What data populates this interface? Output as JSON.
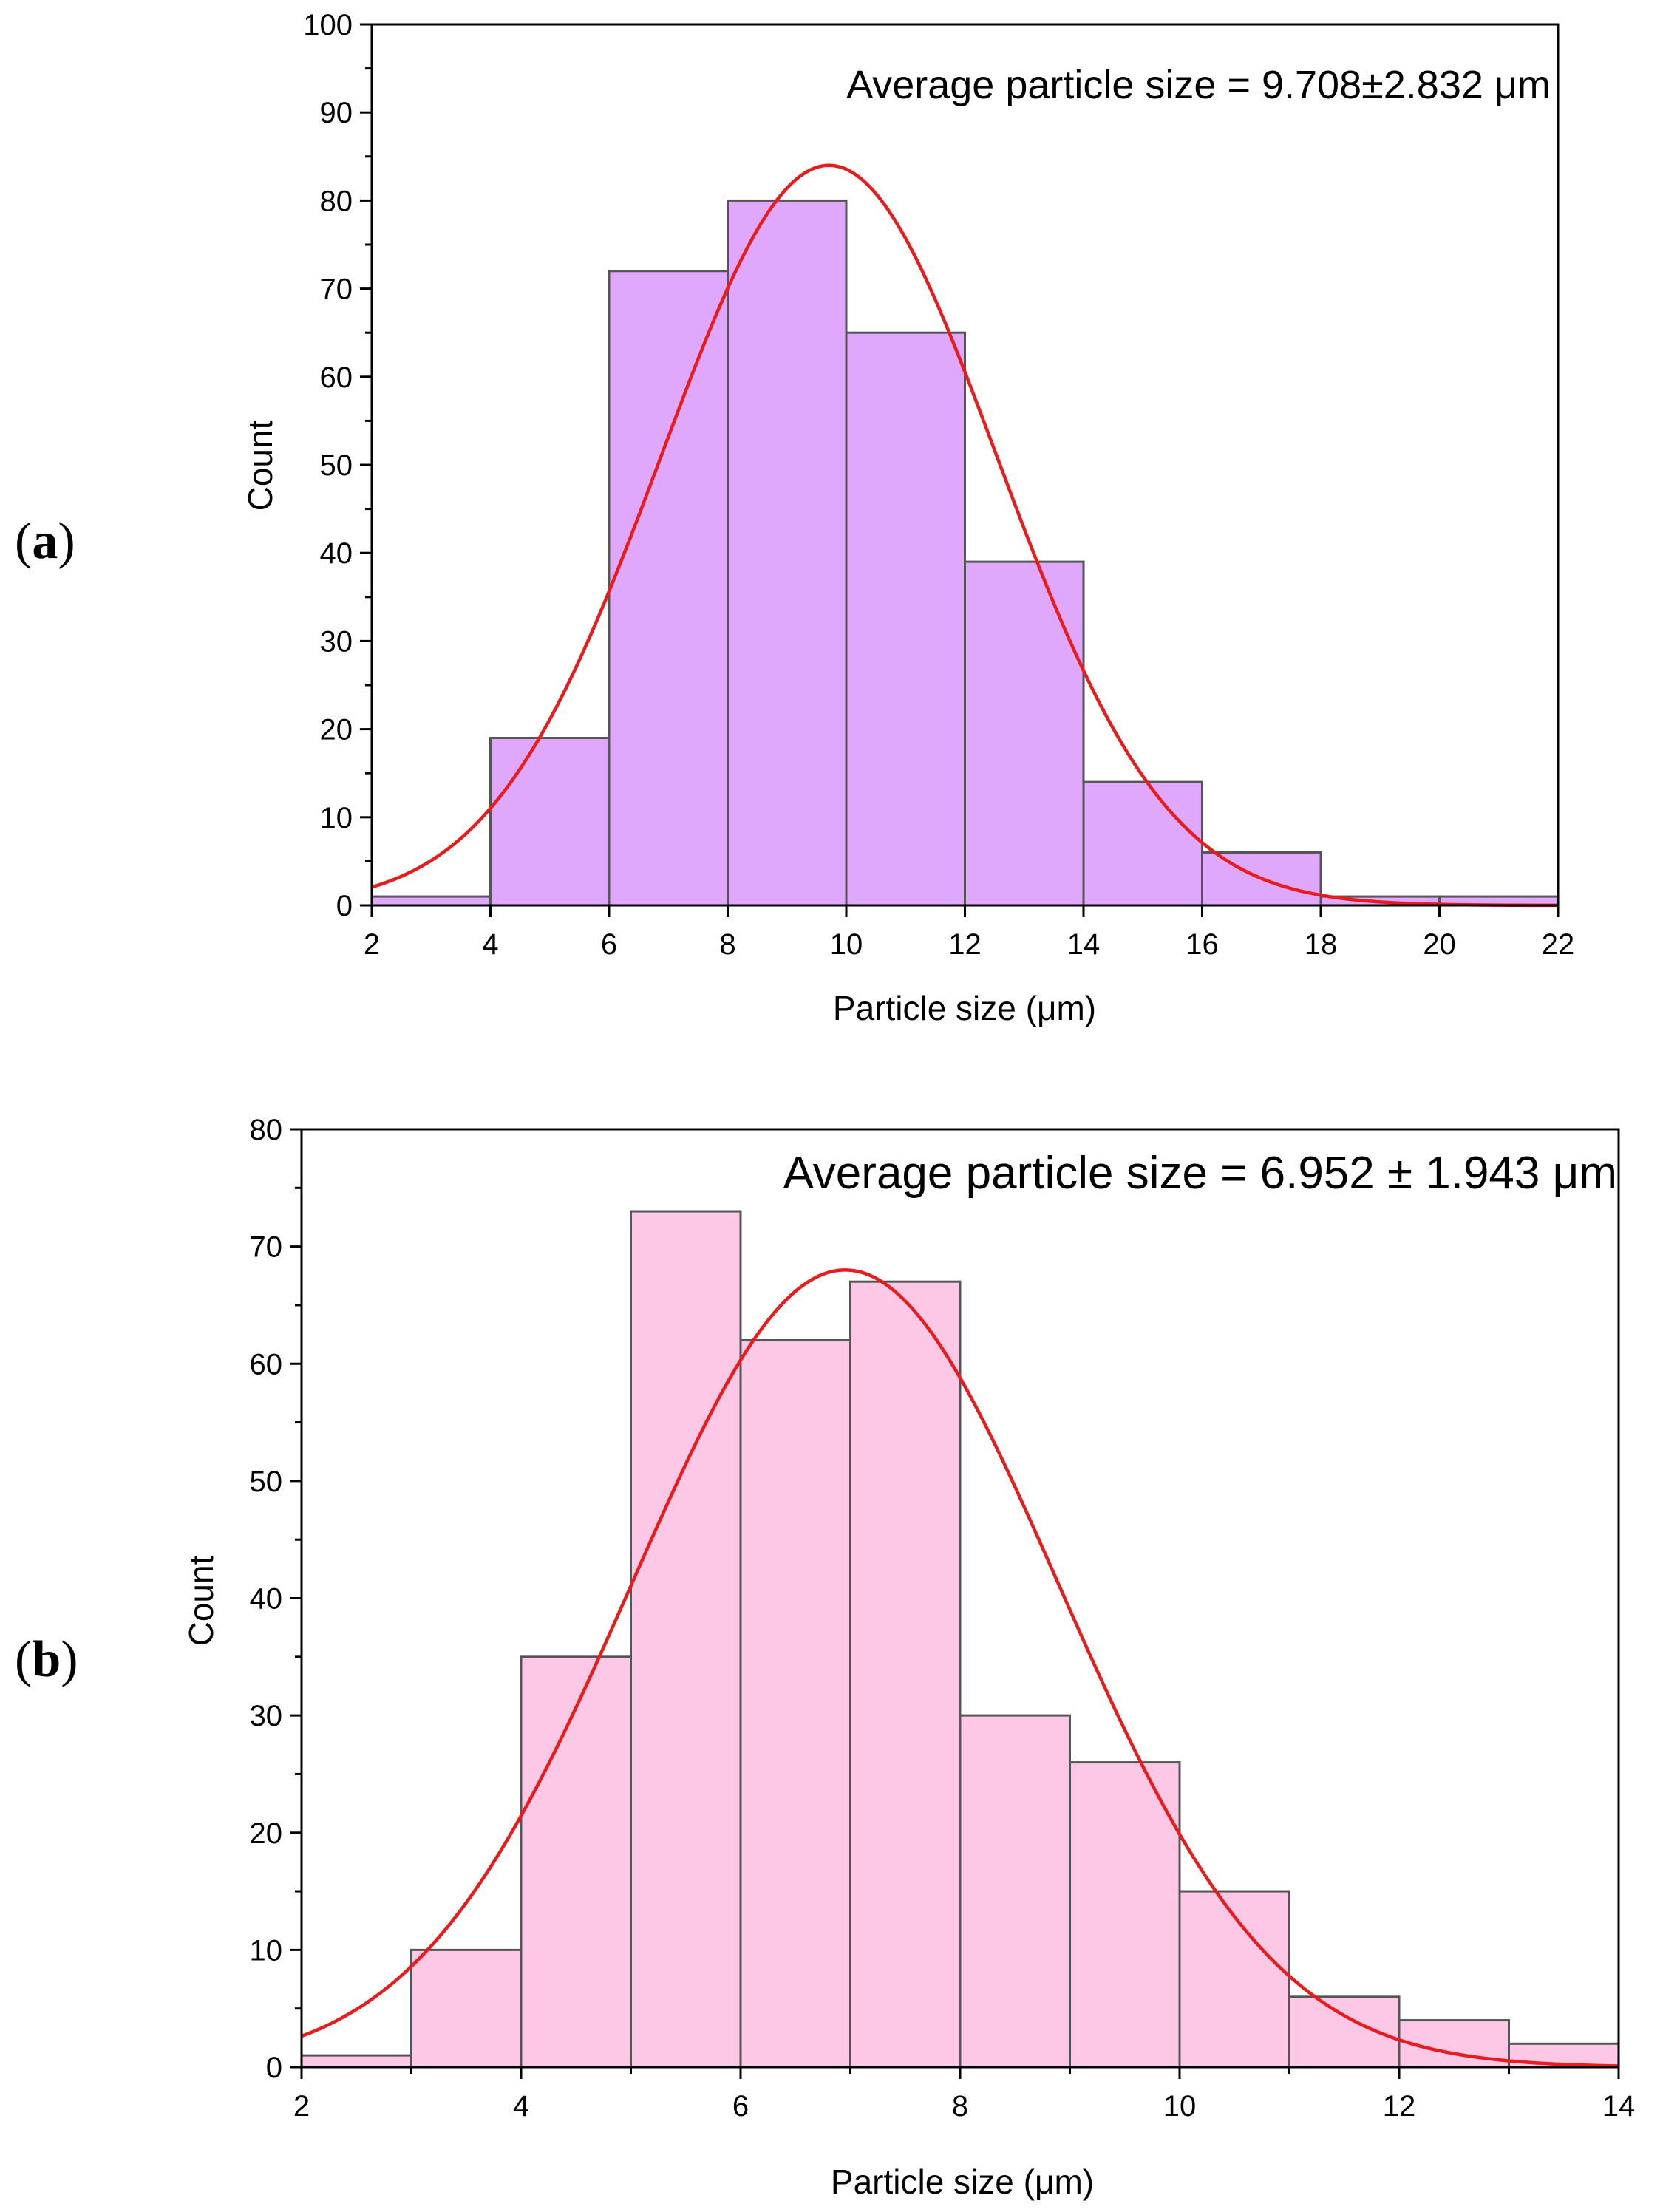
{
  "chart_data": [
    {
      "panel_label": "a",
      "type": "bar",
      "title": "",
      "xlabel": "Particle size (μm)",
      "ylabel": "Count",
      "xlim": [
        2,
        22
      ],
      "ylim": [
        0,
        100
      ],
      "xticks": [
        2,
        4,
        6,
        8,
        10,
        12,
        14,
        16,
        18,
        20,
        22
      ],
      "yticks": [
        0,
        10,
        20,
        30,
        40,
        50,
        60,
        70,
        80,
        90,
        100
      ],
      "bins": [
        {
          "x0": 2,
          "x1": 4,
          "count": 1
        },
        {
          "x0": 4,
          "x1": 6,
          "count": 19
        },
        {
          "x0": 6,
          "x1": 8,
          "count": 72
        },
        {
          "x0": 8,
          "x1": 10,
          "count": 80
        },
        {
          "x0": 10,
          "x1": 12,
          "count": 65
        },
        {
          "x0": 12,
          "x1": 14,
          "count": 39
        },
        {
          "x0": 14,
          "x1": 16,
          "count": 14
        },
        {
          "x0": 16,
          "x1": 18,
          "count": 6
        },
        {
          "x0": 18,
          "x1": 20,
          "count": 1
        },
        {
          "x0": 20,
          "x1": 22,
          "count": 1
        }
      ],
      "fit": {
        "type": "gaussian",
        "mean": 9.708,
        "sd": 2.832,
        "peak": 84
      },
      "annotation": "Average particle size = 9.708±2.832 μm",
      "colors": {
        "bar_fill": "#e0a8fc",
        "bar_stroke": "#555555",
        "curve": "#e81c1c"
      },
      "grid": false
    },
    {
      "panel_label": "b",
      "type": "bar",
      "title": "",
      "xlabel": "Particle size (μm)",
      "ylabel": "Count",
      "xlim": [
        2,
        14
      ],
      "ylim": [
        0,
        80
      ],
      "xticks": [
        2,
        4,
        6,
        8,
        10,
        12,
        14
      ],
      "yticks": [
        0,
        10,
        20,
        30,
        40,
        50,
        60,
        70,
        80
      ],
      "bins": [
        {
          "x0": 2,
          "x1": 3,
          "count": 1
        },
        {
          "x0": 3,
          "x1": 4,
          "count": 10
        },
        {
          "x0": 4,
          "x1": 5,
          "count": 35
        },
        {
          "x0": 5,
          "x1": 6,
          "count": 73
        },
        {
          "x0": 6,
          "x1": 7,
          "count": 62
        },
        {
          "x0": 7,
          "x1": 8,
          "count": 67
        },
        {
          "x0": 8,
          "x1": 9,
          "count": 30
        },
        {
          "x0": 9,
          "x1": 10,
          "count": 26
        },
        {
          "x0": 10,
          "x1": 11,
          "count": 15
        },
        {
          "x0": 11,
          "x1": 12,
          "count": 6
        },
        {
          "x0": 12,
          "x1": 13,
          "count": 4
        },
        {
          "x0": 13,
          "x1": 14,
          "count": 2
        }
      ],
      "fit": {
        "type": "gaussian",
        "mean": 6.952,
        "sd": 1.943,
        "peak": 68
      },
      "annotation": "Average particle size = 6.952 ± 1.943 μm",
      "colors": {
        "bar_fill": "#fdc8e6",
        "bar_stroke": "#555555",
        "curve": "#e81c1c"
      },
      "grid": false
    }
  ]
}
